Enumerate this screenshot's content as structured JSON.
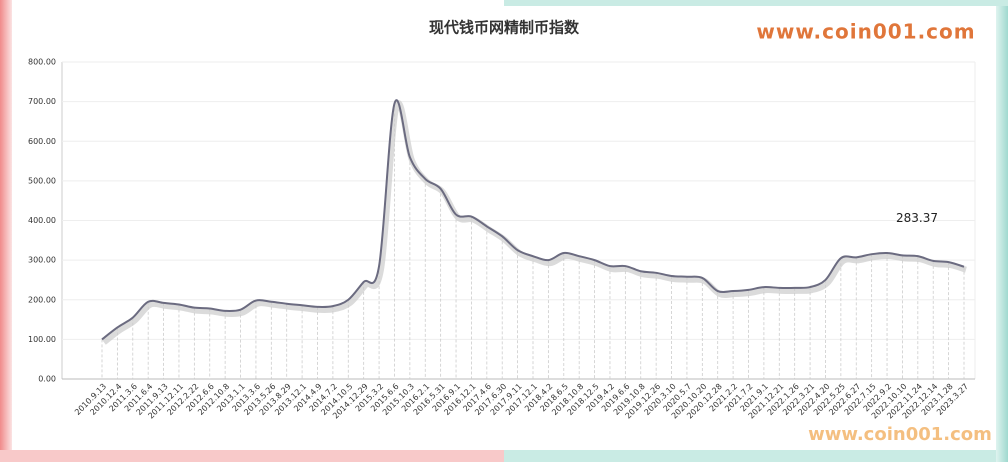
{
  "chart_data": {
    "type": "line",
    "title": "现代钱币网精制币指数",
    "watermarks": [
      "www.coin001.com",
      "www.coin001.com"
    ],
    "annotation": "283.37",
    "categories": [
      "2010.9.13",
      "2010.12.4",
      "2011.3.6",
      "2011.6.4",
      "2011.9.13",
      "2011.12.11",
      "2012.2.22",
      "2012.6.6",
      "2012.10.8",
      "2013.1.1",
      "2013.3.6",
      "2013.5.26",
      "2013.8.29",
      "2013.12.1",
      "2014.4.9",
      "2014.7.2",
      "2014.10.5",
      "2014.12.29",
      "2015.3.2",
      "2015.6.6",
      "2015.10.3",
      "2016.2.1",
      "2016.5.31",
      "2016.9.1",
      "2016.12.1",
      "2017.4.6",
      "2017.6.30",
      "2017.9.11",
      "2017.12.1",
      "2018.4.2",
      "2018.6.5",
      "2018.10.8",
      "2018.12.5",
      "2019.4.2",
      "2019.6.6",
      "2019.10.8",
      "2019.12.26",
      "2020.3.10",
      "2020.5.7",
      "2020.10.20",
      "2020.12.28",
      "2021.2.2",
      "2021.7.2",
      "2021.9.1",
      "2021.12.21",
      "2022.1.26",
      "2022.3.21",
      "2022.4.20",
      "2022.5.25",
      "2022.6.27",
      "2022.7.15",
      "2022.9.2",
      "2022.10.10",
      "2022.11.24",
      "2022.12.14",
      "2023.1.28",
      "2023.3.27"
    ],
    "values": [
      100,
      130,
      155,
      195,
      192,
      188,
      180,
      178,
      172,
      175,
      198,
      195,
      190,
      186,
      182,
      184,
      200,
      245,
      285,
      695,
      560,
      505,
      480,
      415,
      410,
      385,
      360,
      325,
      310,
      300,
      318,
      310,
      300,
      285,
      285,
      272,
      268,
      260,
      258,
      255,
      222,
      222,
      225,
      232,
      230,
      230,
      232,
      250,
      305,
      307,
      315,
      318,
      312,
      310,
      298,
      295,
      283.37
    ],
    "color": "#6b6b80",
    "ylim": [
      0,
      800
    ],
    "yticks": [
      {
        "value": 0,
        "label": "0.00"
      },
      {
        "value": 100,
        "label": "100.00"
      },
      {
        "value": 200,
        "label": "200.00"
      },
      {
        "value": 300,
        "label": "300.00"
      },
      {
        "value": 400,
        "label": "400.00"
      },
      {
        "value": 500,
        "label": "500.00"
      },
      {
        "value": 600,
        "label": "600.00"
      },
      {
        "value": 700,
        "label": "700.00"
      },
      {
        "value": 800,
        "label": "800.00"
      }
    ],
    "grid": true
  }
}
